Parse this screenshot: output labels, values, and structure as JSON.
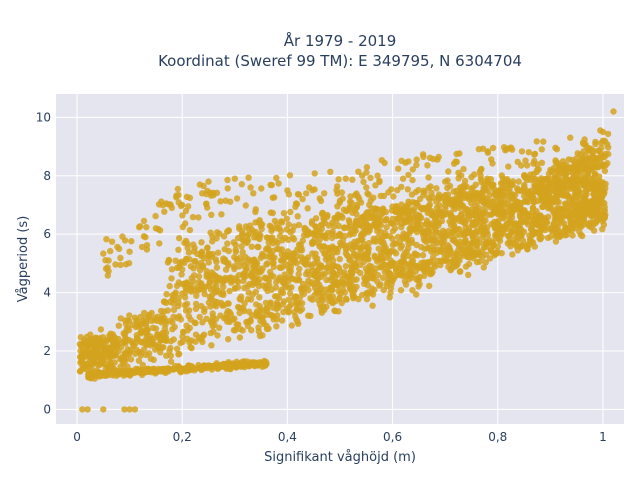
{
  "chart_data": {
    "type": "scatter",
    "title_line1": "År 1979 - 2019",
    "title_line2": "Koordinat (Sweref 99 TM): E 349795, N 6304704",
    "xlabel": "Signifikant våghöjd (m)",
    "ylabel": "Vågperiod (s)",
    "xlim": [
      -0.04,
      1.04
    ],
    "ylim": [
      -0.5,
      10.8
    ],
    "x_ticks": [
      0,
      0.2,
      0.4,
      0.6,
      0.8,
      1
    ],
    "x_tick_labels": [
      "0",
      "0,2",
      "0,4",
      "0,6",
      "0,8",
      "1"
    ],
    "y_ticks": [
      0,
      2,
      4,
      6,
      8,
      10
    ],
    "y_tick_labels": [
      "0",
      "2",
      "4",
      "6",
      "8",
      "10"
    ],
    "grid": true,
    "marker_color": "#d4a31f",
    "plot_bg": "#e5e5ef",
    "sample_points": [
      [
        0.01,
        0
      ],
      [
        0.02,
        0
      ],
      [
        0.05,
        0
      ],
      [
        0.09,
        0
      ],
      [
        0.1,
        0
      ],
      [
        0.11,
        0
      ],
      [
        0.06,
        5.1
      ],
      [
        0.08,
        5.5
      ],
      [
        0.1,
        5.4
      ],
      [
        0.13,
        5.9
      ],
      [
        0.15,
        6.2
      ],
      [
        0.2,
        7.0
      ],
      [
        0.25,
        7.8
      ],
      [
        0.3,
        7.9
      ],
      [
        0.33,
        7.6
      ],
      [
        0.4,
        7.5
      ],
      [
        0.47,
        7.4
      ],
      [
        0.55,
        7.6
      ],
      [
        0.62,
        7.9
      ],
      [
        0.7,
        7.8
      ],
      [
        0.78,
        7.9
      ],
      [
        0.85,
        8.0
      ],
      [
        0.9,
        8.2
      ],
      [
        0.95,
        8.6
      ],
      [
        0.98,
        8.8
      ],
      [
        1.0,
        9.2
      ],
      [
        1.0,
        9.5
      ],
      [
        1.02,
        10.2
      ],
      [
        0.3,
        1.55
      ],
      [
        0.34,
        1.6
      ],
      [
        0.36,
        1.55
      ]
    ]
  }
}
